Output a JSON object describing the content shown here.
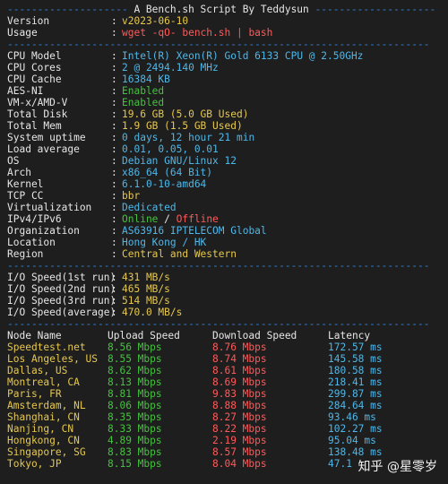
{
  "header": {
    "title": "A Bench.sh Script By Teddysun",
    "version_label": "Version",
    "version_value": "v2023-06-10",
    "usage_label": "Usage",
    "usage_value": "wget -qO- bench.sh | bash"
  },
  "system": [
    {
      "label": "CPU Model",
      "value": "Intel(R) Xeon(R) Gold 6133 CPU @ 2.50GHz",
      "color": "cyan"
    },
    {
      "label": "CPU Cores",
      "value": "2 @ 2494.140 MHz",
      "color": "cyan"
    },
    {
      "label": "CPU Cache",
      "value": "16384 KB",
      "color": "cyan"
    },
    {
      "label": "AES-NI",
      "value": "Enabled",
      "color": "green"
    },
    {
      "label": "VM-x/AMD-V",
      "value": "Enabled",
      "color": "green"
    },
    {
      "label": "Total Disk",
      "value": "19.6 GB (5.0 GB Used)",
      "color": "yellow"
    },
    {
      "label": "Total Mem",
      "value": "1.9 GB (1.5 GB Used)",
      "color": "yellow"
    },
    {
      "label": "System uptime",
      "value": "0 days, 12 hour 21 min",
      "color": "cyan"
    },
    {
      "label": "Load average",
      "value": "0.01, 0.05, 0.01",
      "color": "cyan"
    },
    {
      "label": "OS",
      "value": "Debian GNU/Linux 12",
      "color": "cyan"
    },
    {
      "label": "Arch",
      "value": "x86_64 (64 Bit)",
      "color": "cyan"
    },
    {
      "label": "Kernel",
      "value": "6.1.0-10-amd64",
      "color": "cyan"
    },
    {
      "label": "TCP CC",
      "value": "bbr",
      "color": "yellow"
    },
    {
      "label": "Virtualization",
      "value": "Dedicated",
      "color": "cyan"
    }
  ],
  "ipv": {
    "label": "IPv4/IPv6",
    "online": "Online",
    "slash": " / ",
    "offline": "Offline"
  },
  "org": {
    "label": "Organization",
    "value": "AS63916 IPTELECOM Global"
  },
  "location": {
    "label": "Location",
    "value": "Hong Kong / HK"
  },
  "region": {
    "label": "Region",
    "value": "Central and Western"
  },
  "io": [
    {
      "label": "I/O Speed(1st run)",
      "value": "431 MB/s"
    },
    {
      "label": "I/O Speed(2nd run)",
      "value": "465 MB/s"
    },
    {
      "label": "I/O Speed(3rd run)",
      "value": "514 MB/s"
    },
    {
      "label": "I/O Speed(average)",
      "value": "470.0 MB/s"
    }
  ],
  "speed_headers": {
    "node": "Node Name",
    "upload": "Upload Speed",
    "download": "Download Speed",
    "latency": "Latency"
  },
  "speed_rows": [
    [
      "Speedtest.net",
      "8.56 Mbps",
      "8.76 Mbps",
      "172.57 ms"
    ],
    [
      "Los Angeles, US",
      "8.55 Mbps",
      "8.74 Mbps",
      "145.58 ms"
    ],
    [
      "Dallas, US",
      "8.62 Mbps",
      "8.61 Mbps",
      "180.58 ms"
    ],
    [
      "Montreal, CA",
      "8.13 Mbps",
      "8.69 Mbps",
      "218.41 ms"
    ],
    [
      "Paris, FR",
      "8.81 Mbps",
      "9.83 Mbps",
      "299.87 ms"
    ],
    [
      "Amsterdam, NL",
      "8.06 Mbps",
      "8.88 Mbps",
      "284.64 ms"
    ],
    [
      "Shanghai, CN",
      "8.35 Mbps",
      "8.27 Mbps",
      "93.46 ms"
    ],
    [
      "Nanjing, CN",
      "8.33 Mbps",
      "8.22 Mbps",
      "102.27 ms"
    ],
    [
      "Hongkong, CN",
      "4.89 Mbps",
      "2.19 Mbps",
      "95.04 ms"
    ],
    [
      "Singapore, SG",
      "8.83 Mbps",
      "8.57 Mbps",
      "138.48 ms"
    ],
    [
      "Tokyo, JP",
      "8.15 Mbps",
      "8.04 Mbps",
      "47.1"
    ]
  ],
  "watermark": "知乎 @星零岁",
  "colors": {
    "separator": "#2f7fd0",
    "label": "#e6e6e6",
    "cyan": "#4fb7e8",
    "yellow": "#e6c84d",
    "green": "#45c33f",
    "red": "#ff5a5a"
  }
}
